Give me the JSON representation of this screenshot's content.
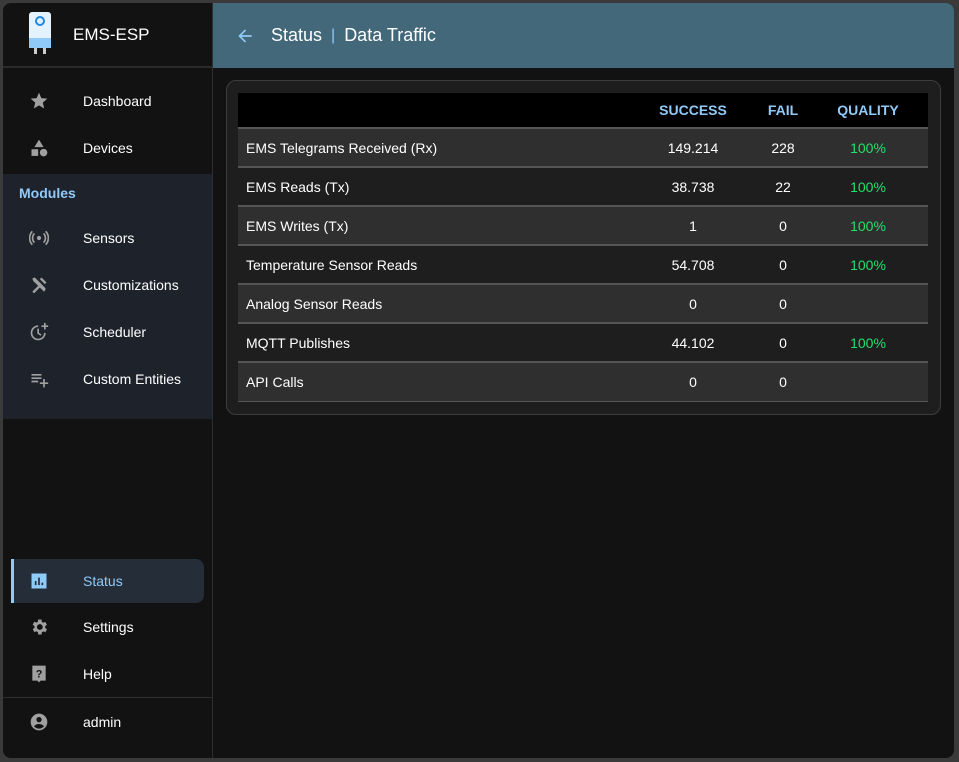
{
  "app": {
    "title": "EMS-ESP"
  },
  "header": {
    "section": "Status",
    "separator": "|",
    "page": "Data Traffic"
  },
  "sidebar": {
    "top": [
      {
        "label": "Dashboard",
        "icon": "star-icon"
      },
      {
        "label": "Devices",
        "icon": "category-icon"
      }
    ],
    "modules_label": "Modules",
    "modules": [
      {
        "label": "Sensors",
        "icon": "sensors-icon"
      },
      {
        "label": "Customizations",
        "icon": "build-icon"
      },
      {
        "label": "Scheduler",
        "icon": "more-time-icon"
      },
      {
        "label": "Custom Entities",
        "icon": "playlist-add-icon"
      }
    ],
    "bottom": [
      {
        "label": "Status",
        "icon": "assessment-icon",
        "selected": true
      },
      {
        "label": "Settings",
        "icon": "gear-icon"
      },
      {
        "label": "Help",
        "icon": "help-icon"
      }
    ],
    "user": "admin"
  },
  "table": {
    "columns": [
      "",
      "SUCCESS",
      "FAIL",
      "QUALITY"
    ],
    "rows": [
      {
        "name": "EMS Telegrams Received (Rx)",
        "success": "149.214",
        "fail": "228",
        "quality": "100%"
      },
      {
        "name": "EMS Reads (Tx)",
        "success": "38.738",
        "fail": "22",
        "quality": "100%"
      },
      {
        "name": "EMS Writes (Tx)",
        "success": "1",
        "fail": "0",
        "quality": "100%"
      },
      {
        "name": "Temperature Sensor Reads",
        "success": "54.708",
        "fail": "0",
        "quality": "100%"
      },
      {
        "name": "Analog Sensor Reads",
        "success": "0",
        "fail": "0",
        "quality": ""
      },
      {
        "name": "MQTT Publishes",
        "success": "44.102",
        "fail": "0",
        "quality": "100%"
      },
      {
        "name": "API Calls",
        "success": "0",
        "fail": "0",
        "quality": ""
      }
    ]
  },
  "colors": {
    "accent": "#90caf9",
    "header_bg": "#42687a",
    "quality_good": "#22e06a"
  }
}
